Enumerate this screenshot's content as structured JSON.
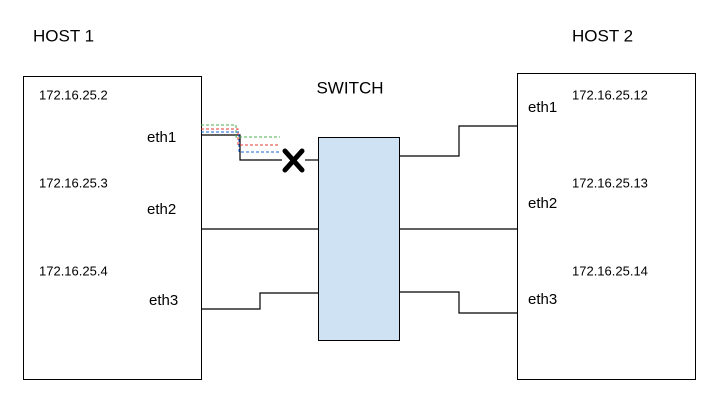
{
  "hosts": [
    {
      "title": "HOST 1",
      "ips": [
        "172.16.25.2",
        "172.16.25.3",
        "172.16.25.4"
      ],
      "interfaces": [
        "eth1",
        "eth2",
        "eth3"
      ]
    },
    {
      "title": "HOST 2",
      "ips": [
        "172.16.25.12",
        "172.16.25.13",
        "172.16.25.14"
      ],
      "interfaces": [
        "eth1",
        "eth2",
        "eth3"
      ]
    }
  ],
  "switch": {
    "label": "SWITCH"
  }
}
